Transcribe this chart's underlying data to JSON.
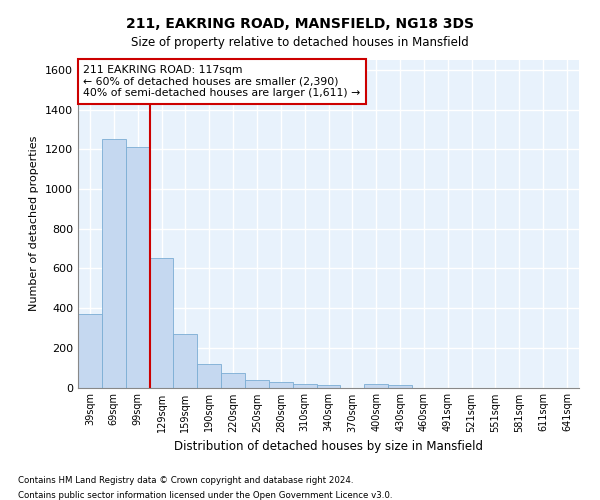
{
  "title1": "211, EAKRING ROAD, MANSFIELD, NG18 3DS",
  "title2": "Size of property relative to detached houses in Mansfield",
  "xlabel": "Distribution of detached houses by size in Mansfield",
  "ylabel": "Number of detached properties",
  "categories": [
    "39sqm",
    "69sqm",
    "99sqm",
    "129sqm",
    "159sqm",
    "190sqm",
    "220sqm",
    "250sqm",
    "280sqm",
    "310sqm",
    "340sqm",
    "370sqm",
    "400sqm",
    "430sqm",
    "460sqm",
    "491sqm",
    "521sqm",
    "551sqm",
    "581sqm",
    "611sqm",
    "641sqm"
  ],
  "values": [
    370,
    1250,
    1210,
    650,
    270,
    120,
    75,
    40,
    30,
    20,
    15,
    0,
    20,
    15,
    0,
    0,
    0,
    0,
    0,
    0,
    0
  ],
  "bar_color": "#c5d8f0",
  "bar_edge_color": "#7badd4",
  "background_color": "#e8f2fc",
  "grid_color": "#ffffff",
  "annotation_text_line1": "211 EAKRING ROAD: 117sqm",
  "annotation_text_line2": "← 60% of detached houses are smaller (2,390)",
  "annotation_text_line3": "40% of semi-detached houses are larger (1,611) →",
  "annotation_box_color": "#ffffff",
  "annotation_box_edge_color": "#cc0000",
  "vline_color": "#cc0000",
  "vline_x": 2.5,
  "ylim": [
    0,
    1650
  ],
  "yticks": [
    0,
    200,
    400,
    600,
    800,
    1000,
    1200,
    1400,
    1600
  ],
  "footnote1": "Contains HM Land Registry data © Crown copyright and database right 2024.",
  "footnote2": "Contains public sector information licensed under the Open Government Licence v3.0."
}
